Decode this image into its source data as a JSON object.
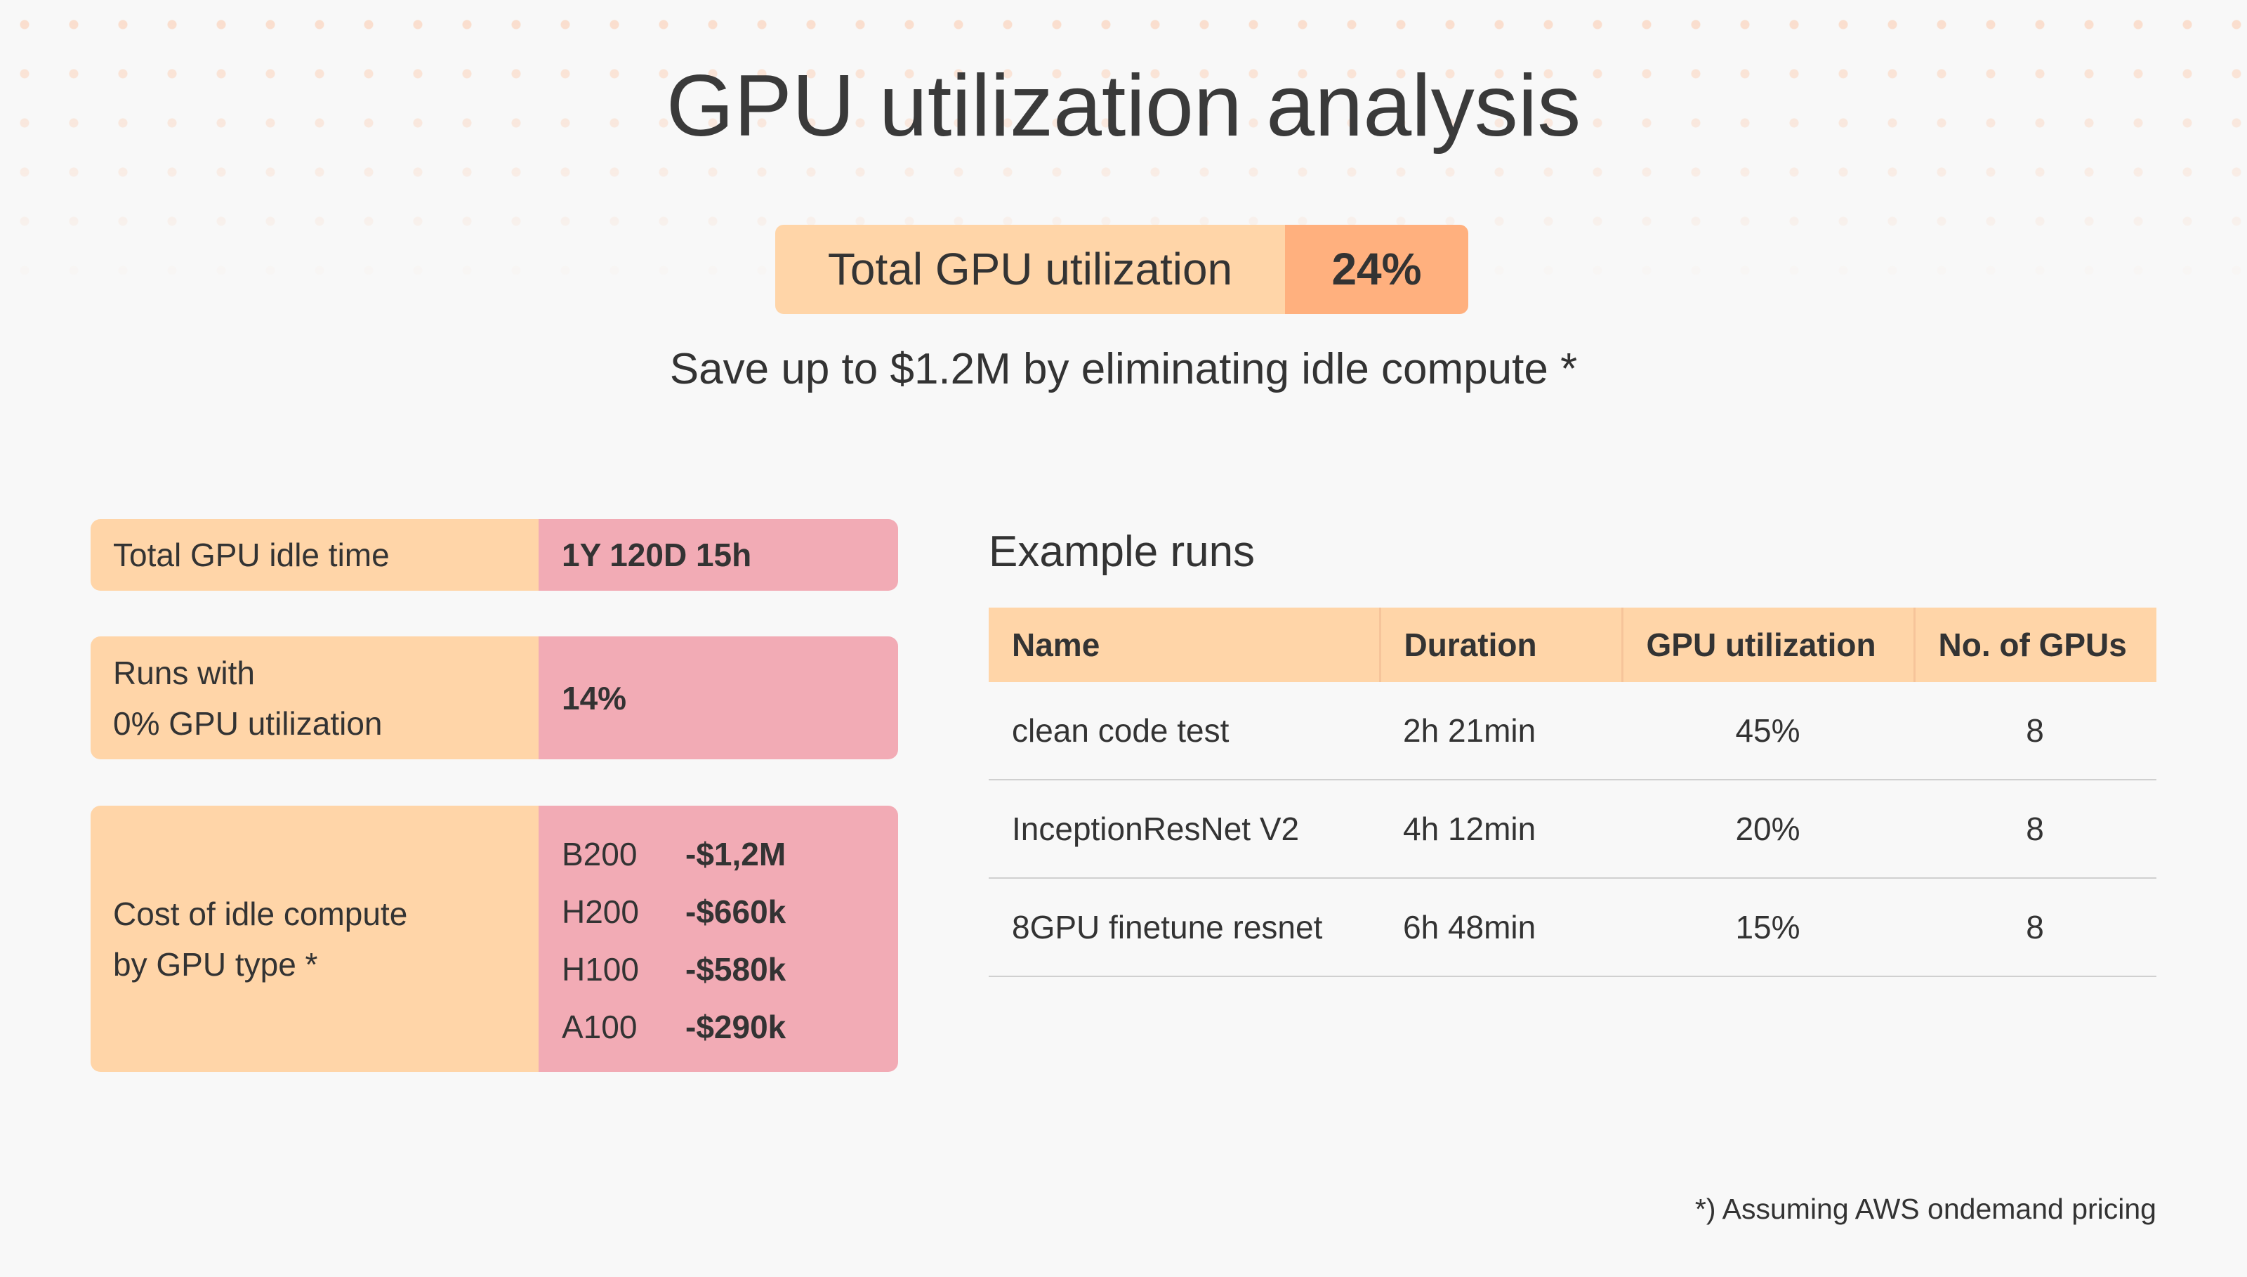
{
  "title": "GPU utilization analysis",
  "summary": {
    "label": "Total GPU utilization",
    "value": "24%"
  },
  "subtitle": "Save up to $1.2M by eliminating idle compute *",
  "stats": [
    {
      "label": "Total GPU idle time",
      "value": "1Y 120D 15h"
    },
    {
      "label_lines": [
        "Runs with",
        "0% GPU utilization"
      ],
      "value": "14%"
    },
    {
      "label_lines": [
        "Cost of idle compute",
        "by GPU type *"
      ],
      "costs": [
        {
          "gpu": "B200",
          "cost": "-$1,2M"
        },
        {
          "gpu": "H200",
          "cost": "-$660k"
        },
        {
          "gpu": "H100",
          "cost": "-$580k"
        },
        {
          "gpu": "A100",
          "cost": "-$290k"
        }
      ]
    }
  ],
  "runs": {
    "title": "Example runs",
    "columns": [
      "Name",
      "Duration",
      "GPU utilization",
      "No. of GPUs"
    ],
    "rows": [
      [
        "clean code test",
        "2h 21min",
        "45%",
        "8"
      ],
      [
        "InceptionResNet V2",
        "4h 12min",
        "20%",
        "8"
      ],
      [
        "8GPU finetune resnet",
        "6h 48min",
        "15%",
        "8"
      ]
    ]
  },
  "footnote": "*) Assuming AWS ondemand pricing"
}
